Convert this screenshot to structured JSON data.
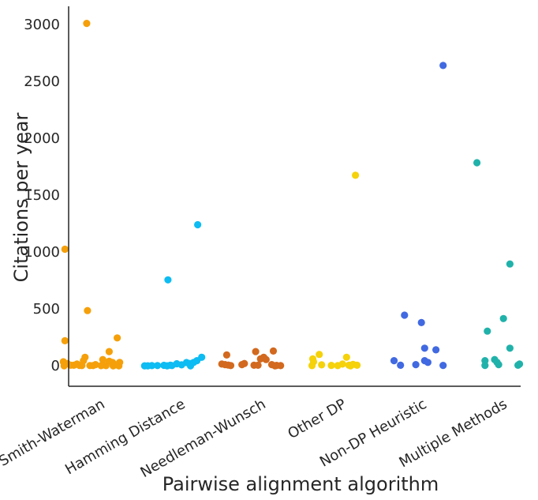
{
  "chart_data": {
    "type": "scatter",
    "title": "",
    "xlabel": "Pairwise alignment algorithm",
    "ylabel": "Citations per year",
    "ylim": [
      -180,
      3160
    ],
    "yticks": [
      0,
      500,
      1000,
      1500,
      2000,
      2500,
      3000
    ],
    "grid": false,
    "legend": "none",
    "categories": [
      "Smith-Waterman",
      "Hamming Distance",
      "Needleman-Wunsch",
      "Other DP",
      "Non-DP Heuristic",
      "Multiple Methods"
    ],
    "series": [
      {
        "category": "Smith-Waterman",
        "color": "#f5a00a",
        "points": [
          {
            "jitter": -0.06,
            "y": 3010
          },
          {
            "jitter": -0.33,
            "y": 1025
          },
          {
            "jitter": -0.05,
            "y": 485
          },
          {
            "jitter": 0.32,
            "y": 245
          },
          {
            "jitter": -0.33,
            "y": 220
          },
          {
            "jitter": 0.22,
            "y": 125
          },
          {
            "jitter": -0.08,
            "y": 75
          },
          {
            "jitter": -0.1,
            "y": 45
          },
          {
            "jitter": 0.14,
            "y": 55
          },
          {
            "jitter": 0.22,
            "y": 40
          },
          {
            "jitter": -0.35,
            "y": 35
          },
          {
            "jitter": 0.26,
            "y": 30
          },
          {
            "jitter": 0.35,
            "y": 30
          },
          {
            "jitter": -0.3,
            "y": 20
          },
          {
            "jitter": -0.18,
            "y": 15
          },
          {
            "jitter": 0.05,
            "y": 10
          },
          {
            "jitter": 0.3,
            "y": 8
          },
          {
            "jitter": -0.26,
            "y": 5
          },
          {
            "jitter": -0.22,
            "y": 5
          },
          {
            "jitter": -0.15,
            "y": 3
          },
          {
            "jitter": -0.12,
            "y": 2
          },
          {
            "jitter": -0.02,
            "y": 2
          },
          {
            "jitter": 0.02,
            "y": 2
          },
          {
            "jitter": 0.12,
            "y": 1
          },
          {
            "jitter": 0.18,
            "y": 1
          },
          {
            "jitter": 0.27,
            "y": 0
          },
          {
            "jitter": 0.34,
            "y": 0
          },
          {
            "jitter": -0.34,
            "y": 0
          }
        ]
      },
      {
        "category": "Hamming Distance",
        "color": "#0dbcf2",
        "points": [
          {
            "jitter": 0.32,
            "y": 1240
          },
          {
            "jitter": -0.05,
            "y": 755
          },
          {
            "jitter": 0.37,
            "y": 75
          },
          {
            "jitter": 0.31,
            "y": 45
          },
          {
            "jitter": 0.27,
            "y": 30
          },
          {
            "jitter": 0.18,
            "y": 28
          },
          {
            "jitter": 0.22,
            "y": 20
          },
          {
            "jitter": 0.06,
            "y": 18
          },
          {
            "jitter": 0.12,
            "y": 8
          },
          {
            "jitter": -0.02,
            "y": 5
          },
          {
            "jitter": -0.1,
            "y": 4
          },
          {
            "jitter": 0.0,
            "y": 2
          },
          {
            "jitter": -0.18,
            "y": 2
          },
          {
            "jitter": -0.25,
            "y": 1
          },
          {
            "jitter": -0.3,
            "y": 0
          },
          {
            "jitter": -0.34,
            "y": 0
          },
          {
            "jitter": 0.23,
            "y": 0
          },
          {
            "jitter": -0.06,
            "y": 0
          }
        ]
      },
      {
        "category": "Needleman-Wunsch",
        "color": "#d2691e",
        "points": [
          {
            "jitter": 0.26,
            "y": 130
          },
          {
            "jitter": 0.04,
            "y": 125
          },
          {
            "jitter": -0.32,
            "y": 95
          },
          {
            "jitter": 0.14,
            "y": 75
          },
          {
            "jitter": 0.1,
            "y": 60
          },
          {
            "jitter": 0.17,
            "y": 55
          },
          {
            "jitter": -0.1,
            "y": 20
          },
          {
            "jitter": -0.38,
            "y": 15
          },
          {
            "jitter": -0.34,
            "y": 10
          },
          {
            "jitter": -0.13,
            "y": 10
          },
          {
            "jitter": 0.24,
            "y": 10
          },
          {
            "jitter": -0.3,
            "y": 6
          },
          {
            "jitter": 0.02,
            "y": 5
          },
          {
            "jitter": 0.07,
            "y": 5
          },
          {
            "jitter": 0.3,
            "y": 3
          },
          {
            "jitter": -0.27,
            "y": 2
          },
          {
            "jitter": 0.35,
            "y": 1
          },
          {
            "jitter": 0.28,
            "y": 0
          }
        ]
      },
      {
        "category": "Other DP",
        "color": "#f5d20a",
        "points": [
          {
            "jitter": 0.28,
            "y": 1675
          },
          {
            "jitter": -0.17,
            "y": 100
          },
          {
            "jitter": 0.17,
            "y": 75
          },
          {
            "jitter": -0.25,
            "y": 60
          },
          {
            "jitter": -0.24,
            "y": 35
          },
          {
            "jitter": 0.12,
            "y": 15
          },
          {
            "jitter": 0.25,
            "y": 12
          },
          {
            "jitter": -0.14,
            "y": 8
          },
          {
            "jitter": 0.2,
            "y": 5
          },
          {
            "jitter": 0.3,
            "y": 5
          },
          {
            "jitter": -0.02,
            "y": 3
          },
          {
            "jitter": -0.26,
            "y": 1
          },
          {
            "jitter": 0.06,
            "y": 1
          },
          {
            "jitter": 0.22,
            "y": 0
          }
        ]
      },
      {
        "category": "Non-DP Heuristic",
        "color": "#4169e1",
        "points": [
          {
            "jitter": 0.37,
            "y": 2640
          },
          {
            "jitter": -0.11,
            "y": 445
          },
          {
            "jitter": 0.1,
            "y": 380
          },
          {
            "jitter": 0.14,
            "y": 155
          },
          {
            "jitter": 0.28,
            "y": 140
          },
          {
            "jitter": -0.24,
            "y": 45
          },
          {
            "jitter": 0.14,
            "y": 45
          },
          {
            "jitter": 0.18,
            "y": 30
          },
          {
            "jitter": 0.03,
            "y": 10
          },
          {
            "jitter": -0.16,
            "y": 5
          },
          {
            "jitter": 0.37,
            "y": 3
          }
        ]
      },
      {
        "category": "Multiple Methods",
        "color": "#20b2aa",
        "points": [
          {
            "jitter": -0.21,
            "y": 1785
          },
          {
            "jitter": 0.2,
            "y": 895
          },
          {
            "jitter": 0.12,
            "y": 415
          },
          {
            "jitter": -0.08,
            "y": 305
          },
          {
            "jitter": 0.2,
            "y": 155
          },
          {
            "jitter": 0.01,
            "y": 55
          },
          {
            "jitter": -0.11,
            "y": 45
          },
          {
            "jitter": 0.04,
            "y": 30
          },
          {
            "jitter": 0.32,
            "y": 15
          },
          {
            "jitter": 0.06,
            "y": 10
          },
          {
            "jitter": 0.3,
            "y": 5
          },
          {
            "jitter": -0.11,
            "y": 3
          }
        ]
      }
    ]
  }
}
